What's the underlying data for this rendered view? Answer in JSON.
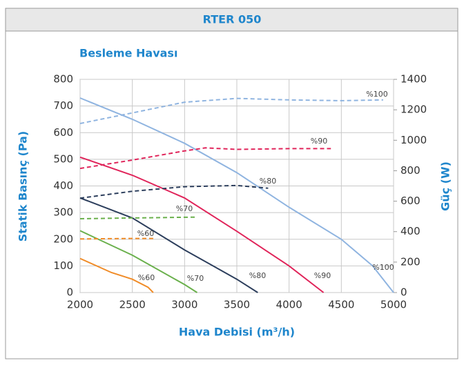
{
  "header": {
    "title": "RTER 050"
  },
  "chart_data": {
    "type": "line",
    "title": "Besleme Havası",
    "x_label": "Hava Debisi (m³/h)",
    "y_label": "Statik Basınç (Pa)",
    "y2_label": "Güç (W)",
    "xlim": [
      2000,
      5000
    ],
    "xticks": [
      2000,
      2500,
      3000,
      3500,
      4000,
      4500,
      5000
    ],
    "ylim": [
      0,
      800
    ],
    "yticks": [
      0,
      100,
      200,
      300,
      400,
      500,
      600,
      700,
      800
    ],
    "y2lim": [
      0,
      1400
    ],
    "y2ticks": [
      0,
      200,
      400,
      600,
      800,
      1000,
      1200,
      1400
    ],
    "grid": true,
    "series": [
      {
        "name": "%100",
        "color": "#8fb4e0",
        "axis": "y",
        "dashed": false,
        "x": [
          2000,
          2500,
          3000,
          3500,
          4000,
          4500,
          4800,
          5000
        ],
        "values": [
          730,
          650,
          560,
          450,
          320,
          200,
          100,
          0
        ]
      },
      {
        "name": "%90",
        "color": "#e0245a",
        "axis": "y",
        "dashed": false,
        "x": [
          2000,
          2500,
          3000,
          3500,
          4000,
          4330
        ],
        "values": [
          508,
          440,
          355,
          230,
          100,
          0
        ]
      },
      {
        "name": "%80",
        "color": "#2c3e5c",
        "axis": "y",
        "dashed": false,
        "x": [
          2000,
          2500,
          3000,
          3500,
          3700
        ],
        "values": [
          355,
          280,
          160,
          50,
          0
        ]
      },
      {
        "name": "%70",
        "color": "#6ab04c",
        "axis": "y",
        "dashed": false,
        "x": [
          2000,
          2500,
          3000,
          3120
        ],
        "values": [
          232,
          140,
          30,
          0
        ]
      },
      {
        "name": "%60",
        "color": "#f08c28",
        "axis": "y",
        "dashed": false,
        "x": [
          2000,
          2300,
          2500,
          2650,
          2700
        ],
        "values": [
          128,
          75,
          50,
          20,
          0
        ]
      },
      {
        "name": "%100",
        "color": "#8fb4e0",
        "axis": "y2",
        "dashed": true,
        "x": [
          2000,
          2500,
          3000,
          3500,
          4000,
          4500,
          4900
        ],
        "values": [
          1110,
          1180,
          1250,
          1275,
          1265,
          1260,
          1265
        ]
      },
      {
        "name": "%90",
        "color": "#e0245a",
        "axis": "y2",
        "dashed": true,
        "x": [
          2000,
          2500,
          3000,
          3200,
          3500,
          4000,
          4400
        ],
        "values": [
          815,
          870,
          930,
          950,
          940,
          945,
          945
        ]
      },
      {
        "name": "%80",
        "color": "#2c3e5c",
        "axis": "y2",
        "dashed": true,
        "x": [
          2000,
          2500,
          3000,
          3500,
          3800
        ],
        "values": [
          620,
          665,
          695,
          703,
          685
        ]
      },
      {
        "name": "%70",
        "color": "#6ab04c",
        "axis": "y2",
        "dashed": true,
        "x": [
          2000,
          2500,
          3100
        ],
        "values": [
          485,
          490,
          495
        ]
      },
      {
        "name": "%60",
        "color": "#f08c28",
        "axis": "y2",
        "dashed": true,
        "x": [
          2000,
          2500,
          2700
        ],
        "values": [
          352,
          355,
          355
        ]
      }
    ]
  }
}
